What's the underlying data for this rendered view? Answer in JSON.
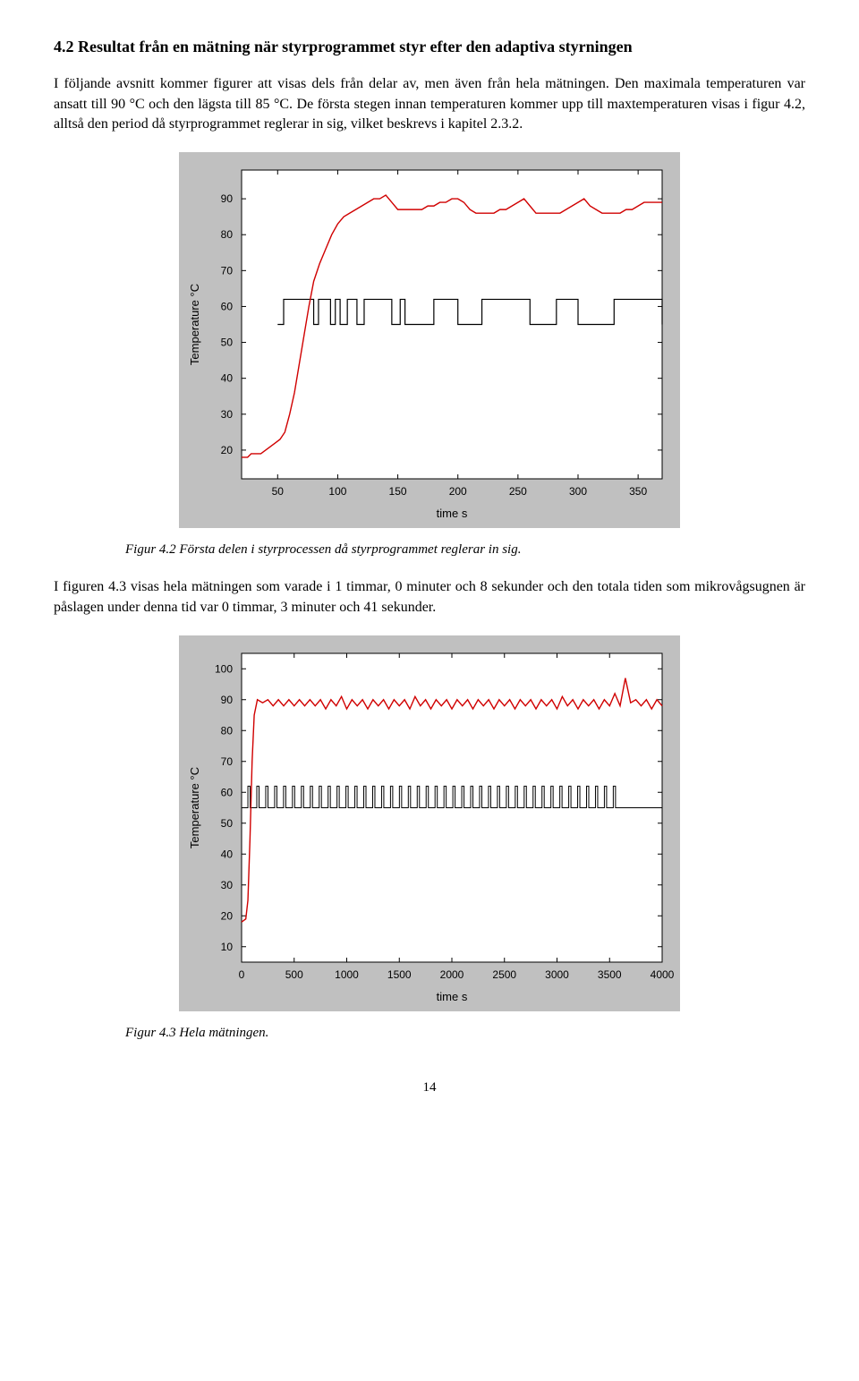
{
  "section": {
    "title": "4.2 Resultat från en mätning när styrprogrammet styr efter den adaptiva styrningen"
  },
  "para1": "I följande avsnitt kommer figurer att visas dels från delar av, men även från hela mätningen. Den maximala temperaturen var ansatt till 90 °C och den lägsta till 85 °C. De första stegen innan temperaturen kommer upp till maxtemperaturen visas i figur 4.2, alltså den period då styrprogrammet reglerar in sig, vilket beskrevs i kapitel 2.3.2.",
  "fig42": {
    "caption": "Figur 4.2 Första delen i styrprocessen då styrprogrammet reglerar in sig.",
    "bg_outer": "#c0c0c0",
    "bg_inner": "#ffffff",
    "axis_color": "#000000",
    "tick_color": "#000000",
    "text_color": "#000000",
    "temp_color": "#d00000",
    "pulse_color": "#000000",
    "xlabel": "time s",
    "ylabel": "Temperature °C",
    "xticks": [
      50,
      100,
      150,
      200,
      250,
      300,
      350
    ],
    "yticks": [
      20,
      30,
      40,
      50,
      60,
      70,
      80,
      90
    ],
    "xlim": [
      20,
      370
    ],
    "ylim": [
      12,
      98
    ],
    "temp_x": [
      20,
      25,
      28,
      32,
      36,
      40,
      44,
      48,
      52,
      56,
      60,
      64,
      68,
      72,
      76,
      80,
      85,
      90,
      95,
      100,
      105,
      110,
      115,
      120,
      125,
      130,
      135,
      140,
      145,
      150,
      155,
      160,
      165,
      170,
      175,
      180,
      185,
      190,
      195,
      200,
      205,
      210,
      215,
      220,
      225,
      230,
      235,
      240,
      245,
      250,
      255,
      260,
      265,
      270,
      275,
      280,
      285,
      290,
      295,
      300,
      305,
      310,
      315,
      320,
      325,
      330,
      335,
      340,
      345,
      350,
      355,
      360,
      365,
      370
    ],
    "temp_y": [
      18,
      18,
      19,
      19,
      19,
      20,
      21,
      22,
      23,
      25,
      30,
      36,
      44,
      52,
      60,
      67,
      72,
      76,
      80,
      83,
      85,
      86,
      87,
      88,
      89,
      90,
      90,
      91,
      89,
      87,
      87,
      87,
      87,
      87,
      88,
      88,
      89,
      89,
      90,
      90,
      89,
      87,
      86,
      86,
      86,
      86,
      87,
      87,
      88,
      89,
      90,
      88,
      86,
      86,
      86,
      86,
      86,
      87,
      88,
      89,
      90,
      88,
      87,
      86,
      86,
      86,
      86,
      87,
      87,
      88,
      89,
      89,
      89,
      89
    ],
    "pulse_low": 55,
    "pulse_high": 62,
    "pulse_on": [
      [
        55,
        80
      ],
      [
        84,
        94
      ],
      [
        98,
        102
      ],
      [
        108,
        116
      ],
      [
        122,
        145
      ],
      [
        152,
        156
      ],
      [
        180,
        200
      ],
      [
        220,
        260
      ],
      [
        282,
        300
      ],
      [
        330,
        370
      ]
    ]
  },
  "para2": "I figuren 4.3 visas hela mätningen som varade i 1 timmar, 0 minuter och 8 sekunder och den totala tiden som mikrovågsugnen är påslagen under denna tid var 0 timmar, 3 minuter och 41 sekunder.",
  "fig43": {
    "caption": "Figur 4.3 Hela mätningen.",
    "bg_outer": "#c0c0c0",
    "bg_inner": "#ffffff",
    "axis_color": "#000000",
    "temp_color": "#d00000",
    "pulse_color": "#000000",
    "xlabel": "time s",
    "ylabel": "Temperature °C",
    "xticks": [
      0,
      500,
      1000,
      1500,
      2000,
      2500,
      3000,
      3500,
      4000
    ],
    "yticks": [
      10,
      20,
      30,
      40,
      50,
      60,
      70,
      80,
      90,
      100
    ],
    "xlim": [
      0,
      4000
    ],
    "ylim": [
      5,
      105
    ],
    "temp_x": [
      0,
      40,
      60,
      80,
      100,
      120,
      150,
      200,
      250,
      300,
      350,
      400,
      450,
      500,
      550,
      600,
      650,
      700,
      750,
      800,
      850,
      900,
      950,
      1000,
      1050,
      1100,
      1150,
      1200,
      1250,
      1300,
      1350,
      1400,
      1450,
      1500,
      1550,
      1600,
      1650,
      1700,
      1750,
      1800,
      1850,
      1900,
      1950,
      2000,
      2050,
      2100,
      2150,
      2200,
      2250,
      2300,
      2350,
      2400,
      2450,
      2500,
      2550,
      2600,
      2650,
      2700,
      2750,
      2800,
      2850,
      2900,
      2950,
      3000,
      3050,
      3100,
      3150,
      3200,
      3250,
      3300,
      3350,
      3400,
      3450,
      3500,
      3550,
      3600,
      3650,
      3700,
      3750,
      3800,
      3850,
      3900,
      3950,
      4000
    ],
    "temp_y": [
      18,
      19,
      25,
      45,
      70,
      85,
      90,
      89,
      90,
      88,
      90,
      88,
      90,
      88,
      90,
      88,
      90,
      88,
      90,
      87,
      90,
      88,
      91,
      87,
      90,
      88,
      90,
      87,
      90,
      88,
      90,
      87,
      90,
      88,
      90,
      87,
      91,
      88,
      90,
      87,
      90,
      88,
      90,
      87,
      90,
      88,
      90,
      87,
      90,
      88,
      90,
      87,
      90,
      88,
      90,
      87,
      90,
      88,
      90,
      87,
      90,
      88,
      90,
      87,
      91,
      88,
      90,
      87,
      90,
      88,
      90,
      87,
      90,
      88,
      92,
      88,
      97,
      89,
      90,
      88,
      90,
      87,
      90,
      88
    ],
    "pulse_low": 55,
    "pulse_high": 62,
    "pulse_density": 42,
    "pulse_start": 60,
    "pulse_end": 3620
  },
  "pageNumber": "14"
}
